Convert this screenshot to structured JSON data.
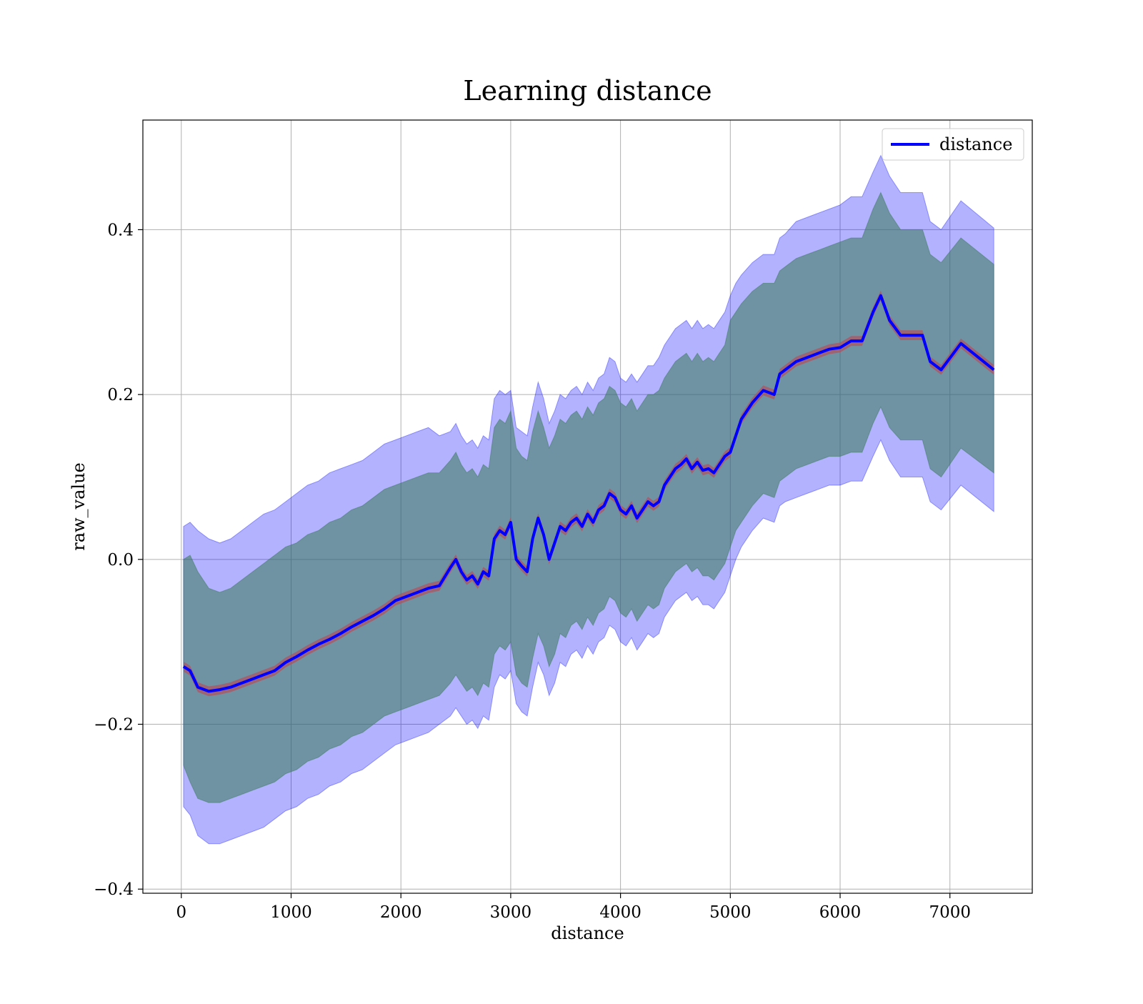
{
  "chart_data": {
    "type": "line",
    "title": "Learning distance",
    "xlabel": "distance",
    "ylabel": "raw_value",
    "xlim": [
      -350,
      7750
    ],
    "ylim": [
      -0.405,
      0.533
    ],
    "xticks": [
      0,
      1000,
      2000,
      3000,
      4000,
      5000,
      6000,
      7000
    ],
    "yticks": [
      -0.4,
      -0.2,
      0.0,
      0.2,
      0.4
    ],
    "xtick_labels": [
      "0",
      "1000",
      "2000",
      "3000",
      "4000",
      "5000",
      "6000",
      "7000"
    ],
    "ytick_labels": [
      "−0.4",
      "−0.2",
      "0.0",
      "0.2",
      "0.4"
    ],
    "grid": true,
    "legend_position": "top-right",
    "colors": {
      "line": "#0000ff",
      "outer_band": "#0000ff",
      "inner_band": "#3a7a5a",
      "line_band": "#b05060"
    },
    "series": [
      {
        "name": "distance",
        "x": [
          20,
          80,
          150,
          250,
          350,
          450,
          550,
          650,
          750,
          850,
          950,
          1050,
          1150,
          1250,
          1350,
          1450,
          1550,
          1650,
          1750,
          1850,
          1950,
          2050,
          2150,
          2250,
          2350,
          2450,
          2500,
          2550,
          2600,
          2650,
          2700,
          2750,
          2800,
          2850,
          2900,
          2950,
          3000,
          3050,
          3100,
          3150,
          3200,
          3250,
          3300,
          3350,
          3400,
          3450,
          3500,
          3550,
          3600,
          3650,
          3700,
          3750,
          3800,
          3850,
          3900,
          3950,
          4000,
          4050,
          4100,
          4150,
          4200,
          4250,
          4300,
          4350,
          4400,
          4450,
          4500,
          4550,
          4600,
          4650,
          4700,
          4750,
          4800,
          4850,
          4900,
          4950,
          5000,
          5050,
          5100,
          5200,
          5300,
          5400,
          5450,
          5500,
          5600,
          5700,
          5800,
          5900,
          6000,
          6100,
          6200,
          6300,
          6370,
          6450,
          6550,
          6650,
          6750,
          6820,
          6920,
          7100,
          7400
        ],
        "y": [
          -0.13,
          -0.135,
          -0.155,
          -0.16,
          -0.158,
          -0.155,
          -0.15,
          -0.145,
          -0.14,
          -0.135,
          -0.125,
          -0.118,
          -0.11,
          -0.103,
          -0.097,
          -0.09,
          -0.082,
          -0.075,
          -0.068,
          -0.06,
          -0.05,
          -0.045,
          -0.04,
          -0.035,
          -0.032,
          -0.01,
          0.0,
          -0.015,
          -0.025,
          -0.02,
          -0.03,
          -0.015,
          -0.02,
          0.025,
          0.035,
          0.03,
          0.045,
          0.0,
          -0.008,
          -0.015,
          0.025,
          0.05,
          0.03,
          0.0,
          0.02,
          0.04,
          0.035,
          0.045,
          0.05,
          0.04,
          0.055,
          0.045,
          0.06,
          0.065,
          0.08,
          0.075,
          0.06,
          0.055,
          0.065,
          0.05,
          0.06,
          0.07,
          0.065,
          0.07,
          0.09,
          0.1,
          0.11,
          0.115,
          0.122,
          0.11,
          0.118,
          0.108,
          0.11,
          0.105,
          0.115,
          0.125,
          0.13,
          0.15,
          0.17,
          0.19,
          0.205,
          0.2,
          0.225,
          0.23,
          0.24,
          0.245,
          0.25,
          0.255,
          0.257,
          0.265,
          0.265,
          0.3,
          0.32,
          0.29,
          0.272,
          0.272,
          0.272,
          0.24,
          0.23,
          0.262,
          0.23
        ],
        "outer_upper": [
          0.04,
          0.045,
          0.035,
          0.025,
          0.02,
          0.025,
          0.035,
          0.045,
          0.055,
          0.06,
          0.07,
          0.08,
          0.09,
          0.095,
          0.105,
          0.11,
          0.115,
          0.12,
          0.13,
          0.14,
          0.145,
          0.15,
          0.155,
          0.16,
          0.15,
          0.155,
          0.165,
          0.15,
          0.14,
          0.145,
          0.135,
          0.15,
          0.145,
          0.195,
          0.205,
          0.2,
          0.205,
          0.16,
          0.155,
          0.15,
          0.185,
          0.215,
          0.195,
          0.165,
          0.18,
          0.2,
          0.195,
          0.205,
          0.21,
          0.2,
          0.215,
          0.205,
          0.22,
          0.225,
          0.245,
          0.24,
          0.22,
          0.215,
          0.225,
          0.215,
          0.225,
          0.235,
          0.235,
          0.245,
          0.26,
          0.27,
          0.28,
          0.285,
          0.29,
          0.28,
          0.29,
          0.28,
          0.285,
          0.28,
          0.29,
          0.3,
          0.32,
          0.335,
          0.345,
          0.36,
          0.37,
          0.37,
          0.39,
          0.395,
          0.41,
          0.415,
          0.42,
          0.425,
          0.43,
          0.44,
          0.44,
          0.47,
          0.49,
          0.465,
          0.445,
          0.445,
          0.445,
          0.41,
          0.4,
          0.435,
          0.402
        ],
        "outer_lower": [
          -0.3,
          -0.31,
          -0.335,
          -0.345,
          -0.345,
          -0.34,
          -0.335,
          -0.33,
          -0.325,
          -0.315,
          -0.305,
          -0.3,
          -0.29,
          -0.285,
          -0.275,
          -0.27,
          -0.26,
          -0.255,
          -0.245,
          -0.235,
          -0.225,
          -0.22,
          -0.215,
          -0.21,
          -0.2,
          -0.19,
          -0.18,
          -0.19,
          -0.2,
          -0.195,
          -0.205,
          -0.19,
          -0.195,
          -0.155,
          -0.14,
          -0.145,
          -0.135,
          -0.175,
          -0.185,
          -0.19,
          -0.155,
          -0.125,
          -0.14,
          -0.165,
          -0.15,
          -0.125,
          -0.13,
          -0.115,
          -0.11,
          -0.12,
          -0.105,
          -0.115,
          -0.1,
          -0.095,
          -0.08,
          -0.085,
          -0.1,
          -0.105,
          -0.095,
          -0.11,
          -0.1,
          -0.09,
          -0.095,
          -0.09,
          -0.07,
          -0.06,
          -0.05,
          -0.045,
          -0.04,
          -0.05,
          -0.045,
          -0.055,
          -0.055,
          -0.06,
          -0.05,
          -0.04,
          -0.02,
          0.0,
          0.015,
          0.035,
          0.05,
          0.045,
          0.065,
          0.07,
          0.075,
          0.08,
          0.085,
          0.09,
          0.09,
          0.095,
          0.095,
          0.125,
          0.145,
          0.12,
          0.1,
          0.1,
          0.1,
          0.07,
          0.06,
          0.09,
          0.058
        ],
        "inner_upper": [
          0.0,
          0.005,
          -0.015,
          -0.035,
          -0.04,
          -0.035,
          -0.025,
          -0.015,
          -0.005,
          0.005,
          0.015,
          0.02,
          0.03,
          0.035,
          0.045,
          0.05,
          0.06,
          0.065,
          0.075,
          0.085,
          0.09,
          0.095,
          0.1,
          0.105,
          0.105,
          0.12,
          0.13,
          0.115,
          0.105,
          0.11,
          0.1,
          0.115,
          0.11,
          0.16,
          0.17,
          0.165,
          0.18,
          0.135,
          0.125,
          0.12,
          0.155,
          0.18,
          0.16,
          0.135,
          0.15,
          0.17,
          0.165,
          0.175,
          0.18,
          0.17,
          0.185,
          0.175,
          0.19,
          0.195,
          0.21,
          0.205,
          0.19,
          0.185,
          0.195,
          0.18,
          0.19,
          0.2,
          0.2,
          0.205,
          0.22,
          0.23,
          0.24,
          0.245,
          0.25,
          0.24,
          0.25,
          0.24,
          0.245,
          0.24,
          0.25,
          0.26,
          0.29,
          0.3,
          0.31,
          0.325,
          0.335,
          0.335,
          0.35,
          0.355,
          0.365,
          0.37,
          0.375,
          0.38,
          0.385,
          0.39,
          0.39,
          0.425,
          0.445,
          0.42,
          0.4,
          0.4,
          0.4,
          0.37,
          0.36,
          0.39,
          0.358
        ],
        "inner_lower": [
          -0.25,
          -0.27,
          -0.29,
          -0.295,
          -0.295,
          -0.29,
          -0.285,
          -0.28,
          -0.275,
          -0.27,
          -0.26,
          -0.255,
          -0.245,
          -0.24,
          -0.23,
          -0.225,
          -0.215,
          -0.21,
          -0.2,
          -0.19,
          -0.185,
          -0.18,
          -0.175,
          -0.17,
          -0.165,
          -0.15,
          -0.14,
          -0.15,
          -0.16,
          -0.155,
          -0.165,
          -0.15,
          -0.155,
          -0.115,
          -0.105,
          -0.11,
          -0.1,
          -0.14,
          -0.15,
          -0.155,
          -0.12,
          -0.09,
          -0.105,
          -0.13,
          -0.115,
          -0.09,
          -0.095,
          -0.08,
          -0.075,
          -0.085,
          -0.07,
          -0.08,
          -0.065,
          -0.06,
          -0.045,
          -0.05,
          -0.065,
          -0.07,
          -0.06,
          -0.075,
          -0.065,
          -0.055,
          -0.06,
          -0.055,
          -0.035,
          -0.025,
          -0.015,
          -0.01,
          -0.005,
          -0.015,
          -0.01,
          -0.02,
          -0.02,
          -0.025,
          -0.015,
          -0.005,
          0.015,
          0.035,
          0.045,
          0.065,
          0.08,
          0.075,
          0.095,
          0.1,
          0.11,
          0.115,
          0.12,
          0.125,
          0.125,
          0.13,
          0.13,
          0.165,
          0.185,
          0.16,
          0.145,
          0.145,
          0.145,
          0.11,
          0.1,
          0.135,
          0.105
        ]
      }
    ]
  }
}
